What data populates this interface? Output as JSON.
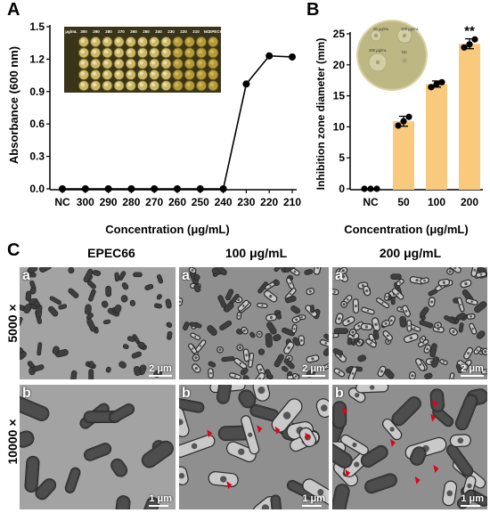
{
  "panels": {
    "a_letter": "A",
    "b_letter": "B",
    "c_letter": "C"
  },
  "chart_data": [
    {
      "type": "line",
      "panel": "A",
      "title": "",
      "xlabel": "Concentration (μg/mL)",
      "ylabel": "Absorbance (600 nm)",
      "categories": [
        "NC",
        "300",
        "290",
        "280",
        "270",
        "260",
        "250",
        "240",
        "230",
        "220",
        "210"
      ],
      "values": [
        0.0,
        0.0,
        0.0,
        0.0,
        0.0,
        0.0,
        0.0,
        0.0,
        0.97,
        1.23,
        1.22
      ],
      "ylim": [
        0,
        1.5
      ],
      "yticks": [
        "0.0",
        "0.3",
        "0.6",
        "0.9",
        "1.2",
        "1.5"
      ],
      "inset_labels": [
        "μg/mL",
        "300",
        "290",
        "280",
        "270",
        "260",
        "250",
        "240",
        "230",
        "220",
        "210",
        "NC",
        "EPEC66"
      ]
    },
    {
      "type": "bar",
      "panel": "B",
      "title": "",
      "xlabel": "Concentration (μg/mL)",
      "ylabel": "Inhibition zone diameter (mm)",
      "categories": [
        "NC",
        "50",
        "100",
        "200"
      ],
      "values": [
        0,
        10.9,
        16.9,
        23.4
      ],
      "points": [
        [
          0,
          0,
          0
        ],
        [
          10.2,
          11.6,
          10.9
        ],
        [
          16.4,
          17.2,
          16.9
        ],
        [
          22.8,
          24.1,
          23.3
        ]
      ],
      "errors": [
        0,
        0.8,
        0.5,
        0.8
      ],
      "ylim": [
        0,
        25
      ],
      "yticks": [
        "0",
        "5",
        "10",
        "15",
        "20",
        "25"
      ],
      "annotation": "**",
      "inset_labels": [
        "50 μg/mL",
        "100 μg/mL",
        "200 μg/mL",
        "NC"
      ],
      "bar_color": "#f9c97e"
    }
  ],
  "panel_c": {
    "columns": [
      "EPEC66",
      "100 μg/mL",
      "200 μg/mL"
    ],
    "rows": [
      "5000 ×",
      "10000 ×"
    ],
    "sub_a": "a",
    "sub_b": "b",
    "scale_row1": "2 μm",
    "scale_row2": "1 μm"
  }
}
